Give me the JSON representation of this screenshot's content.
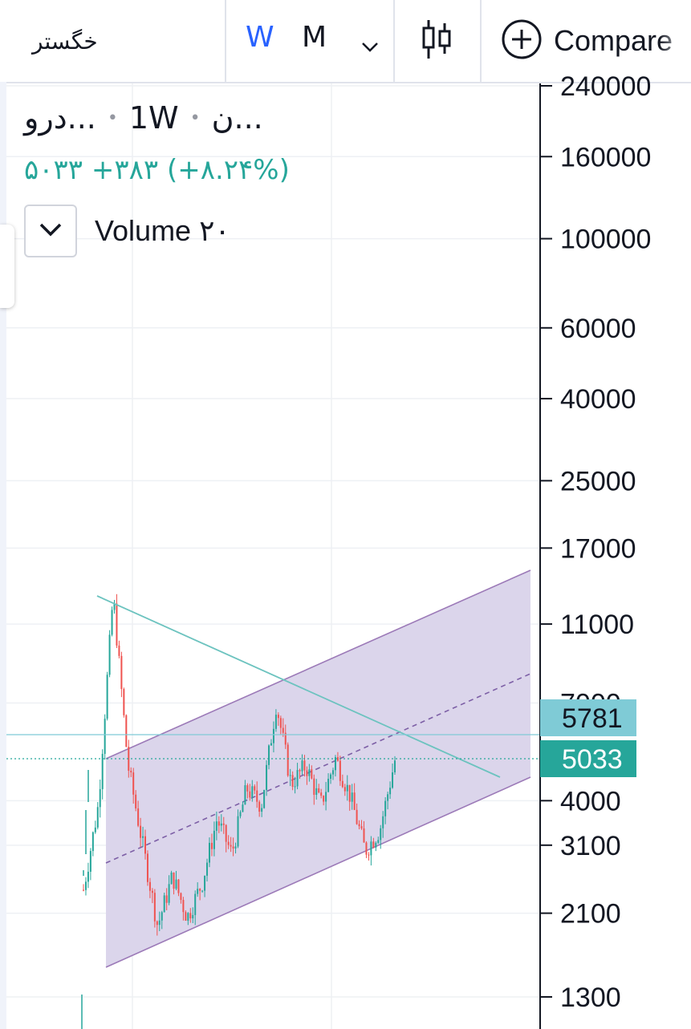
{
  "toolbar": {
    "symbol": "خگستر",
    "interval_w": "W",
    "interval_m": "M",
    "compare_label": "Compare"
  },
  "legend": {
    "name_short": "...ن",
    "interval": "1W",
    "source_short": "...درو",
    "last_value": "۵۰۳۳",
    "change": "+۳۸۳",
    "change_pct": "(+۸.۲۴%)",
    "volume_label": "Volume ۲۰"
  },
  "colors": {
    "up": "#26a69a",
    "down": "#ef5350",
    "channel_fill": "#d9d3ea",
    "channel_line": "#9c7ab8",
    "trendline": "#6cc3bf",
    "price_tag": "#26a69a",
    "level_tag": "#7fcbd6"
  },
  "chart_data": {
    "type": "candlestick",
    "y_axis": {
      "scale": "log",
      "side": "right",
      "ticks": [
        240000,
        160000,
        100000,
        60000,
        40000,
        25000,
        17000,
        11000,
        7000,
        4000,
        3100,
        2100,
        1300
      ]
    },
    "last_price": 5033,
    "horizontal_level": 5781,
    "series_approx_path": [
      {
        "t": 0,
        "price": 2400
      },
      {
        "t": 1,
        "price": 3900
      },
      {
        "t": 2,
        "price": 13000
      },
      {
        "t": 3,
        "price": 4900
      },
      {
        "t": 4,
        "price": 3100
      },
      {
        "t": 5,
        "price": 1950
      },
      {
        "t": 6,
        "price": 2600
      },
      {
        "t": 7,
        "price": 2050
      },
      {
        "t": 8,
        "price": 2500
      },
      {
        "t": 9,
        "price": 3600
      },
      {
        "t": 10,
        "price": 2950
      },
      {
        "t": 11,
        "price": 4300
      },
      {
        "t": 12,
        "price": 3900
      },
      {
        "t": 13,
        "price": 7000
      },
      {
        "t": 14,
        "price": 4400
      },
      {
        "t": 15,
        "price": 4900
      },
      {
        "t": 16,
        "price": 3900
      },
      {
        "t": 17,
        "price": 5100
      },
      {
        "t": 18,
        "price": 4100
      },
      {
        "t": 19,
        "price": 3000
      },
      {
        "t": 20,
        "price": 3400
      },
      {
        "t": 21,
        "price": 5033
      }
    ]
  }
}
